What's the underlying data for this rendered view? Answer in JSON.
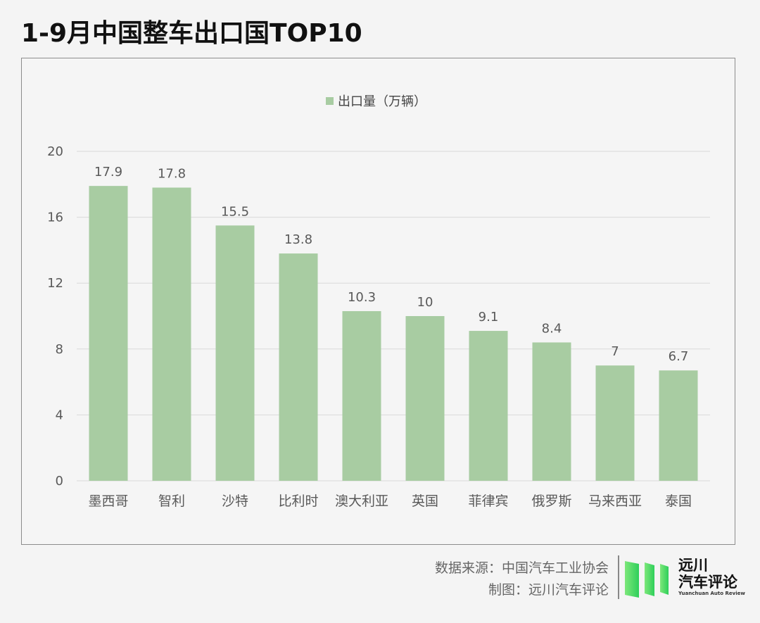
{
  "title": "1-9月中国整车出口国TOP10",
  "chart_data": {
    "type": "bar",
    "categories": [
      "墨西哥",
      "智利",
      "沙特",
      "比利时",
      "澳大利亚",
      "英国",
      "菲律宾",
      "俄罗斯",
      "马来西亚",
      "泰国"
    ],
    "series": [
      {
        "name": "出口量（万辆）",
        "values": [
          17.9,
          17.8,
          15.5,
          13.8,
          10.3,
          10,
          9.1,
          8.4,
          7,
          6.7
        ],
        "color": "#a8cca2"
      }
    ],
    "data_labels": [
      "17.9",
      "17.8",
      "15.5",
      "13.8",
      "10.3",
      "10",
      "9.1",
      "8.4",
      "7",
      "6.7"
    ],
    "y_ticks": [
      "0",
      "4",
      "8",
      "12",
      "16",
      "20"
    ],
    "ylim": [
      0,
      20
    ],
    "grid": true,
    "legend_position": "top-center"
  },
  "footer": {
    "source": "数据来源：中国汽车工业协会",
    "maker": "制图：远川汽车评论"
  },
  "logo": {
    "line1": "远川",
    "line2": "汽车评论",
    "sub": "Yuanchuan Auto Review"
  }
}
